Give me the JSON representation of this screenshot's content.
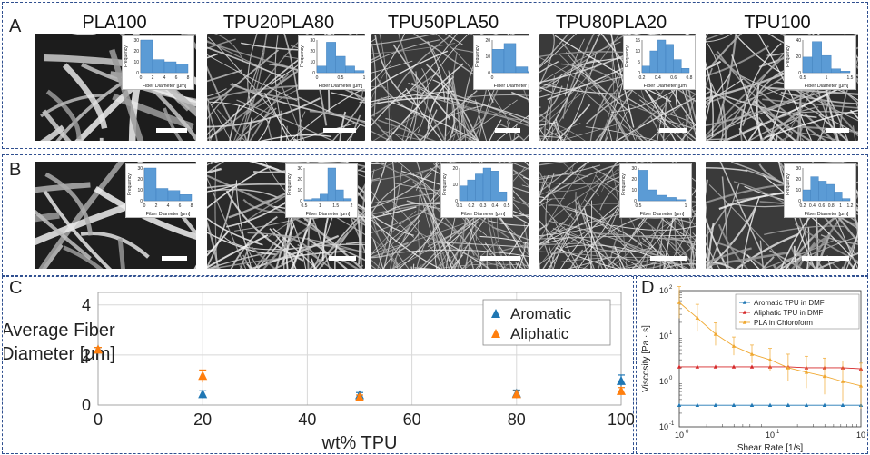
{
  "panels": {
    "A": "A",
    "B": "B",
    "C": "C",
    "D": "D"
  },
  "columns": [
    "PLA100",
    "TPU20PLA80",
    "TPU50PLA50",
    "TPU80PLA20",
    "TPU100"
  ],
  "histograms": {
    "ylabel": "Frequency",
    "xlabel": "Fiber Diameter [μm]",
    "rowA": [
      {
        "yticks": [
          "0",
          "10",
          "20",
          "30"
        ],
        "xticks": [
          "0",
          "2",
          "4",
          "6",
          "8"
        ],
        "values": [
          30,
          12,
          10,
          8
        ],
        "ymax": 30
      },
      {
        "yticks": [
          "0",
          "10",
          "20",
          "30"
        ],
        "xticks": [
          "0",
          "0.5",
          "1"
        ],
        "values": [
          6,
          28,
          15,
          6,
          2
        ],
        "ymax": 30
      },
      {
        "yticks": [
          "0",
          "10",
          "20"
        ],
        "xticks": [
          "0",
          "0.5"
        ],
        "values": [
          20,
          25,
          5,
          1
        ],
        "ymax": 28
      },
      {
        "yticks": [
          "0",
          "5",
          "10",
          "15"
        ],
        "xticks": [
          "0.2",
          "0.4",
          "0.6",
          "0.8"
        ],
        "values": [
          3,
          10,
          15,
          13,
          6,
          2
        ],
        "ymax": 15
      },
      {
        "yticks": [
          "0",
          "20",
          "40"
        ],
        "xticks": [
          "0.5",
          "1",
          "1.5"
        ],
        "values": [
          20,
          40,
          22,
          5,
          2
        ],
        "ymax": 42
      }
    ],
    "rowB": [
      {
        "yticks": [
          "0",
          "10",
          "20",
          "30"
        ],
        "xticks": [
          "0",
          "2",
          "4",
          "6",
          "8"
        ],
        "values": [
          32,
          12,
          10,
          6
        ],
        "ymax": 32
      },
      {
        "yticks": [
          "0",
          "10",
          "20",
          "30"
        ],
        "xticks": [
          "0.5",
          "1",
          "1.5",
          "2"
        ],
        "values": [
          1,
          2,
          6,
          30,
          10,
          2
        ],
        "ymax": 30
      },
      {
        "yticks": [
          "0",
          "10",
          "20"
        ],
        "xticks": [
          "0.1",
          "0.2",
          "0.3",
          "0.4",
          "0.5"
        ],
        "values": [
          10,
          14,
          18,
          22,
          20,
          6
        ],
        "ymax": 22
      },
      {
        "yticks": [
          "0",
          "10",
          "20",
          "30"
        ],
        "xticks": [
          "0.5",
          "1"
        ],
        "values": [
          28,
          10,
          5,
          3,
          1
        ],
        "ymax": 30
      },
      {
        "yticks": [
          "0",
          "10",
          "20",
          "30"
        ],
        "xticks": [
          "0.2",
          "0.4",
          "0.6",
          "0.8",
          "1",
          "1.2"
        ],
        "values": [
          10,
          22,
          18,
          15,
          8,
          2
        ],
        "ymax": 30
      }
    ]
  },
  "chart_data": [
    {
      "type": "scatter",
      "ylabel_line1": "Average Fiber",
      "ylabel_line2": "Diameter [μm]",
      "xlabel": "wt% TPU",
      "xlim": [
        0,
        100
      ],
      "ylim": [
        0,
        4.5
      ],
      "xticks": [
        "0",
        "20",
        "40",
        "60",
        "80",
        "100"
      ],
      "yticks": [
        "0",
        "2",
        "4"
      ],
      "grid": true,
      "legend_position": "top-right",
      "series": [
        {
          "name": "Aromatic",
          "color": "#1f77b4",
          "x": [
            0,
            20,
            50,
            80,
            100
          ],
          "y": [
            2.2,
            0.42,
            0.38,
            0.45,
            0.95
          ],
          "err": [
            0.1,
            0.15,
            0.12,
            0.15,
            0.25
          ]
        },
        {
          "name": "Aliphatic",
          "color": "#ff7f0e",
          "x": [
            0,
            20,
            50,
            80,
            100
          ],
          "y": [
            2.2,
            1.15,
            0.3,
            0.42,
            0.55
          ],
          "err": [
            0.1,
            0.25,
            0.1,
            0.15,
            0.15
          ]
        }
      ]
    },
    {
      "type": "line",
      "ylabel": "Viscosity [Pa · s]",
      "xlabel": "Shear Rate [1/s]",
      "xscale": "log",
      "yscale": "log",
      "xlim": [
        1,
        100
      ],
      "ylim": [
        0.1,
        100
      ],
      "xticks": [
        {
          "base": "10",
          "exp": "0"
        },
        {
          "base": "10",
          "exp": "1"
        },
        {
          "base": "10",
          "exp": "2"
        }
      ],
      "yticks": [
        {
          "base": "10",
          "exp": "-1"
        },
        {
          "base": "10",
          "exp": "0"
        },
        {
          "base": "10",
          "exp": "1"
        },
        {
          "base": "10",
          "exp": "2"
        }
      ],
      "legend_position": "top-right",
      "series": [
        {
          "name": "Aromatic TPU in DMF",
          "color": "#1f77b4",
          "x": [
            1,
            1.58,
            2.51,
            3.98,
            6.31,
            10,
            15.8,
            25.1,
            39.8,
            63.1,
            100
          ],
          "y": [
            0.3,
            0.3,
            0.3,
            0.3,
            0.3,
            0.3,
            0.3,
            0.3,
            0.3,
            0.3,
            0.3
          ],
          "err": [
            0,
            0,
            0,
            0,
            0,
            0,
            0,
            0,
            0,
            0,
            0
          ]
        },
        {
          "name": "Aliphatic TPU in DMF",
          "color": "#d62728",
          "x": [
            1,
            1.58,
            2.51,
            3.98,
            6.31,
            10,
            15.8,
            25.1,
            39.8,
            63.1,
            100
          ],
          "y": [
            2.1,
            2.1,
            2.1,
            2.1,
            2.1,
            2.1,
            2.1,
            2.0,
            2.0,
            2.0,
            1.9
          ],
          "err": [
            0,
            0,
            0,
            0,
            0,
            0,
            0,
            0,
            0,
            0,
            0
          ]
        },
        {
          "name": "PLA in Chloroform",
          "color": "#f0a830",
          "x": [
            1,
            1.58,
            2.51,
            3.98,
            6.31,
            10,
            15.8,
            25.1,
            39.8,
            63.1,
            100
          ],
          "y": [
            55,
            25,
            11,
            6,
            4,
            3,
            2,
            1.6,
            1.3,
            1,
            0.8
          ],
          "err": [
            0.35,
            0.3,
            0.25,
            0.2,
            0.2,
            0.25,
            0.3,
            0.35,
            0.4,
            0.45,
            0.5
          ]
        }
      ]
    }
  ]
}
